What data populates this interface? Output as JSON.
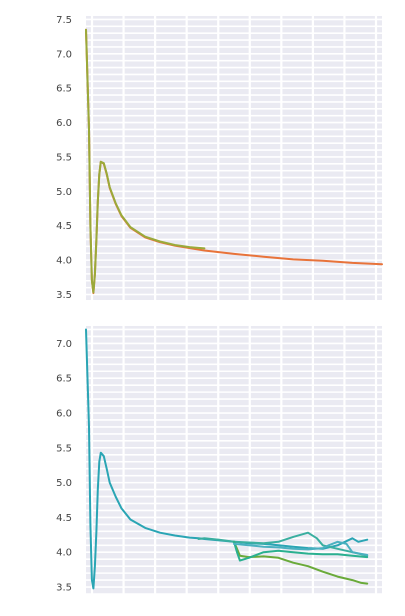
{
  "chart_data": [
    {
      "type": "line",
      "grid": true,
      "ylim": [
        3.42,
        7.55
      ],
      "xlim": [
        0,
        100
      ],
      "yticks": [
        "3.5",
        "4.0",
        "4.5",
        "5.0",
        "5.5",
        "6.0",
        "6.5",
        "7.0",
        "7.5"
      ],
      "series": [
        {
          "color": "#e8733a",
          "x": [
            0,
            1,
            1.5,
            2,
            2.5,
            3,
            3.5,
            4,
            4.5,
            5,
            6,
            7,
            8,
            10,
            12,
            15,
            20,
            25,
            30,
            40,
            50,
            60,
            70,
            80,
            90,
            100
          ],
          "y": [
            7.35,
            5.9,
            4.5,
            3.7,
            3.52,
            3.8,
            4.3,
            4.85,
            5.25,
            5.43,
            5.4,
            5.25,
            5.05,
            4.82,
            4.64,
            4.47,
            4.33,
            4.26,
            4.21,
            4.14,
            4.09,
            4.05,
            4.01,
            3.99,
            3.96,
            3.94
          ]
        },
        {
          "color": "#9aaa3a",
          "x": [
            0,
            1,
            1.5,
            2,
            2.5,
            3,
            3.5,
            4,
            4.5,
            5,
            6,
            7,
            8,
            10,
            12,
            15,
            20,
            25,
            30,
            35,
            40
          ],
          "y": [
            7.35,
            5.9,
            4.5,
            3.7,
            3.53,
            3.8,
            4.3,
            4.85,
            5.25,
            5.43,
            5.41,
            5.26,
            5.06,
            4.83,
            4.65,
            4.48,
            4.34,
            4.27,
            4.22,
            4.19,
            4.17
          ]
        }
      ]
    },
    {
      "type": "line",
      "grid": true,
      "ylim": [
        3.4,
        7.25
      ],
      "xlim": [
        0,
        100
      ],
      "yticks": [
        "3.5",
        "4.0",
        "4.5",
        "5.0",
        "5.5",
        "6.0",
        "6.5",
        "7.0"
      ],
      "series": [
        {
          "color": "#2aa5b4",
          "x": [
            0,
            1,
            1.5,
            2,
            2.5,
            3,
            3.5,
            4,
            4.5,
            5,
            6,
            7,
            8,
            10,
            12,
            15,
            20,
            25,
            30,
            35,
            38,
            40,
            45,
            50,
            55,
            60,
            65,
            70,
            75,
            80,
            85,
            90,
            92,
            95
          ],
          "y": [
            7.2,
            5.8,
            4.4,
            3.6,
            3.48,
            3.8,
            4.3,
            4.9,
            5.3,
            5.43,
            5.38,
            5.2,
            5.0,
            4.8,
            4.63,
            4.47,
            4.35,
            4.28,
            4.24,
            4.21,
            4.2,
            4.19,
            4.17,
            4.15,
            4.13,
            4.12,
            4.1,
            4.08,
            4.06,
            4.05,
            4.1,
            4.2,
            4.15,
            4.18
          ]
        },
        {
          "color": "#3aafa0",
          "x": [
            38,
            40,
            45,
            50,
            55,
            60,
            65,
            70,
            75,
            78,
            80,
            85,
            90,
            95
          ],
          "y": [
            4.19,
            4.2,
            4.18,
            4.15,
            4.14,
            4.13,
            4.15,
            4.22,
            4.28,
            4.2,
            4.1,
            4.05,
            4.0,
            3.95
          ]
        },
        {
          "color": "#6aaa3a",
          "x": [
            50,
            51,
            52,
            55,
            60,
            65,
            70,
            75,
            80,
            85,
            90,
            93,
            95
          ],
          "y": [
            4.15,
            4.05,
            3.95,
            3.93,
            3.94,
            3.92,
            3.85,
            3.8,
            3.72,
            3.65,
            3.6,
            3.56,
            3.55
          ]
        },
        {
          "color": "#2ab090",
          "x": [
            50,
            51,
            52,
            55,
            60,
            65,
            70,
            75,
            80,
            85,
            90,
            95
          ],
          "y": [
            4.15,
            4.0,
            3.88,
            3.92,
            4.0,
            4.02,
            4.0,
            3.98,
            3.97,
            3.97,
            3.95,
            3.93
          ]
        },
        {
          "color": "#4ab0c0",
          "x": [
            50,
            55,
            60,
            65,
            70,
            75,
            80,
            82,
            85,
            88,
            90,
            95
          ],
          "y": [
            4.12,
            4.1,
            4.08,
            4.07,
            4.05,
            4.04,
            4.06,
            4.1,
            4.15,
            4.12,
            4.0,
            3.96
          ]
        }
      ]
    }
  ]
}
